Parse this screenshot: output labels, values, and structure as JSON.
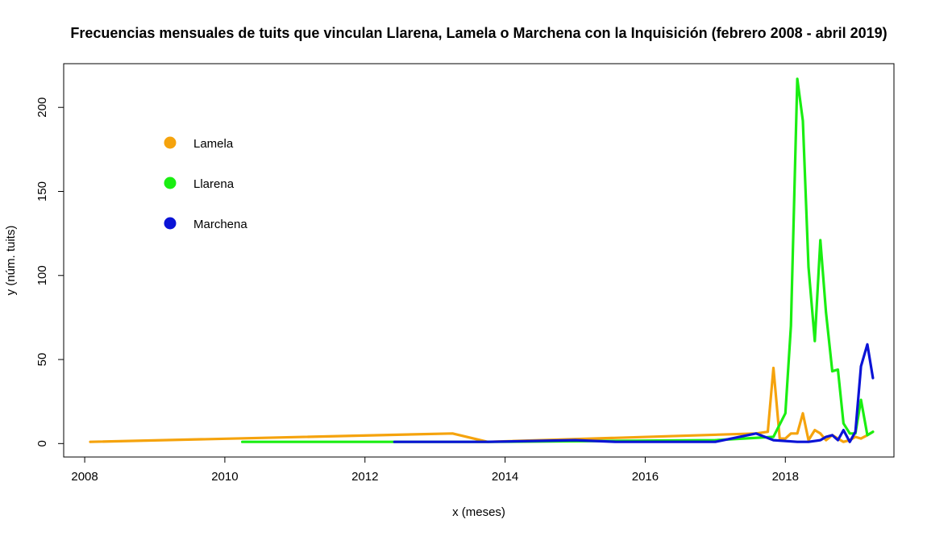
{
  "chart_data": {
    "type": "line",
    "title": "Frecuencias mensuales de tuits que vinculan Llarena, Lamela o Marchena con la Inquisición (febrero 2008 - abril 2019)",
    "xlabel": "x (meses)",
    "ylabel": "y (núm. tuits)",
    "xlim": [
      2007.7,
      2019.55
    ],
    "ylim": [
      -8,
      226
    ],
    "xticks": [
      2008,
      2010,
      2012,
      2014,
      2016,
      2018
    ],
    "yticks": [
      0,
      50,
      100,
      150,
      200
    ],
    "legend_position": "top-left",
    "series": [
      {
        "name": "Lamela",
        "color": "#f5a30d",
        "x": [
          2008.08,
          2013.25,
          2013.75,
          2017.58,
          2017.75,
          2017.83,
          2017.92,
          2018.0,
          2018.08,
          2018.17,
          2018.25,
          2018.33,
          2018.42,
          2018.5,
          2018.58,
          2018.67,
          2018.75,
          2018.83,
          2018.92,
          2019.0,
          2019.08,
          2019.17,
          2019.25
        ],
        "values": [
          1,
          6,
          1,
          6,
          7,
          45,
          3,
          3,
          6,
          6,
          18,
          2,
          8,
          6,
          2,
          5,
          3,
          1,
          2,
          4,
          3,
          5,
          7
        ]
      },
      {
        "name": "Llarena",
        "color": "#1aee12",
        "x": [
          2010.25,
          2012.42,
          2013.75,
          2017.0,
          2017.83,
          2018.0,
          2018.08,
          2018.17,
          2018.25,
          2018.33,
          2018.42,
          2018.5,
          2018.58,
          2018.67,
          2018.75,
          2018.83,
          2018.92,
          2019.0,
          2019.08,
          2019.17,
          2019.25
        ],
        "values": [
          1,
          1,
          1,
          2,
          4,
          18,
          70,
          217,
          192,
          105,
          61,
          121,
          78,
          43,
          44,
          12,
          6,
          6,
          26,
          5,
          7
        ]
      },
      {
        "name": "Marchena",
        "color": "#0a13d6",
        "x": [
          2012.42,
          2013.75,
          2015.0,
          2015.58,
          2017.0,
          2017.58,
          2017.83,
          2018.17,
          2018.33,
          2018.5,
          2018.58,
          2018.67,
          2018.75,
          2018.83,
          2018.92,
          2019.0,
          2019.08,
          2019.17,
          2019.25
        ],
        "values": [
          1,
          1,
          2,
          1,
          1,
          6,
          2,
          1,
          1,
          2,
          4,
          5,
          2,
          8,
          1,
          7,
          46,
          59,
          39
        ]
      }
    ]
  }
}
